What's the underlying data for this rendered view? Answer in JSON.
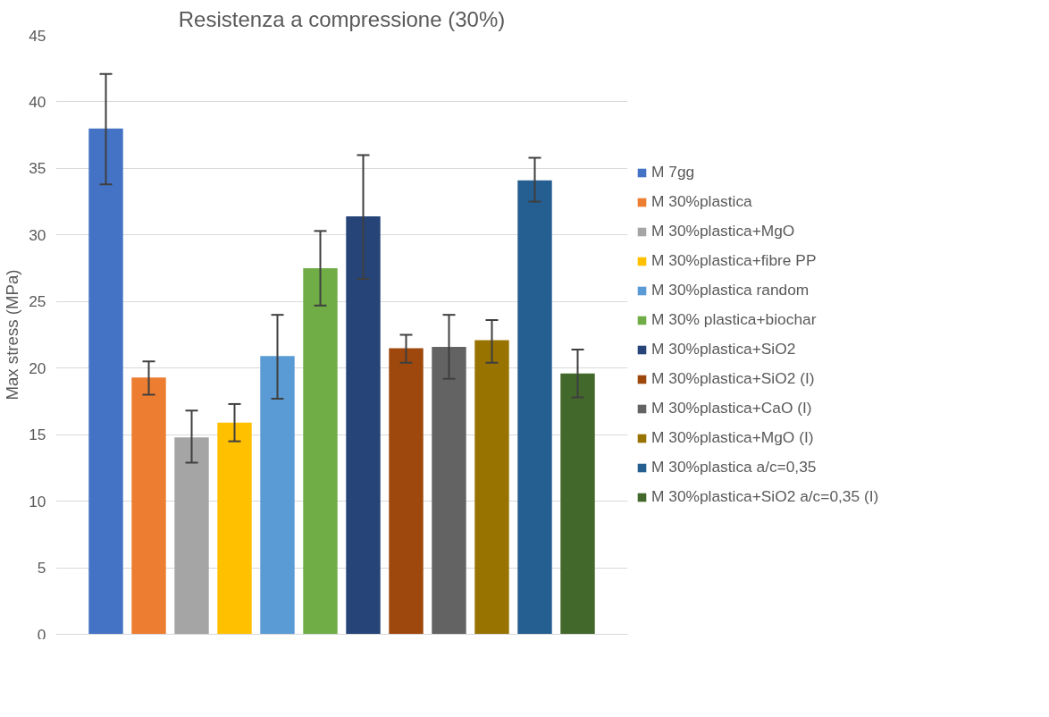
{
  "chart_data": {
    "type": "bar",
    "title": "Resistenza a compressione (30%)",
    "ylabel": "Max stress (MPa)",
    "categories": [
      null
    ],
    "series": [
      {
        "name": "M 7gg",
        "color": "#4472c4",
        "values": [
          38.0
        ],
        "errors": [
          [
            33.8,
            42.1
          ]
        ]
      },
      {
        "name": "M 30%plastica",
        "color": "#ed7d31",
        "values": [
          19.3
        ],
        "errors": [
          [
            18.0,
            20.5
          ]
        ]
      },
      {
        "name": "M 30%plastica+MgO",
        "color": "#a5a5a5",
        "values": [
          14.8
        ],
        "errors": [
          [
            12.9,
            16.8
          ]
        ]
      },
      {
        "name": "M 30%plastica+fibre PP",
        "color": "#ffc000",
        "values": [
          15.9
        ],
        "errors": [
          [
            14.5,
            17.3
          ]
        ]
      },
      {
        "name": "M 30%plastica random",
        "color": "#5b9bd5",
        "values": [
          20.9
        ],
        "errors": [
          [
            17.7,
            24.0
          ]
        ]
      },
      {
        "name": "M 30% plastica+biochar",
        "color": "#70ad47",
        "values": [
          27.5
        ],
        "errors": [
          [
            24.7,
            30.3
          ]
        ]
      },
      {
        "name": "M 30%plastica+SiO2",
        "color": "#264478",
        "values": [
          31.4
        ],
        "errors": [
          [
            26.7,
            36.0
          ]
        ]
      },
      {
        "name": "M 30%plastica+SiO2 (I)",
        "color": "#9e480e",
        "values": [
          21.5
        ],
        "errors": [
          [
            20.4,
            22.5
          ]
        ]
      },
      {
        "name": "M 30%plastica+CaO (I)",
        "color": "#636363",
        "values": [
          21.6
        ],
        "errors": [
          [
            19.2,
            24.0
          ]
        ]
      },
      {
        "name": "M 30%plastica+MgO (I)",
        "color": "#997300",
        "values": [
          22.1
        ],
        "errors": [
          [
            20.4,
            23.6
          ]
        ]
      },
      {
        "name": "M 30%plastica a/c=0,35",
        "color": "#255e91",
        "values": [
          34.1
        ],
        "errors": [
          [
            32.5,
            35.8
          ]
        ]
      },
      {
        "name": "M 30%plastica+SiO2 a/c=0,35 (I)",
        "color": "#43682b",
        "values": [
          19.6
        ],
        "errors": [
          [
            17.8,
            21.4
          ]
        ]
      }
    ],
    "ylim": [
      0,
      45
    ],
    "yticks": [
      0,
      5,
      10,
      15,
      20,
      25,
      30,
      35,
      40,
      45
    ],
    "grid": "y",
    "legend": "right"
  }
}
